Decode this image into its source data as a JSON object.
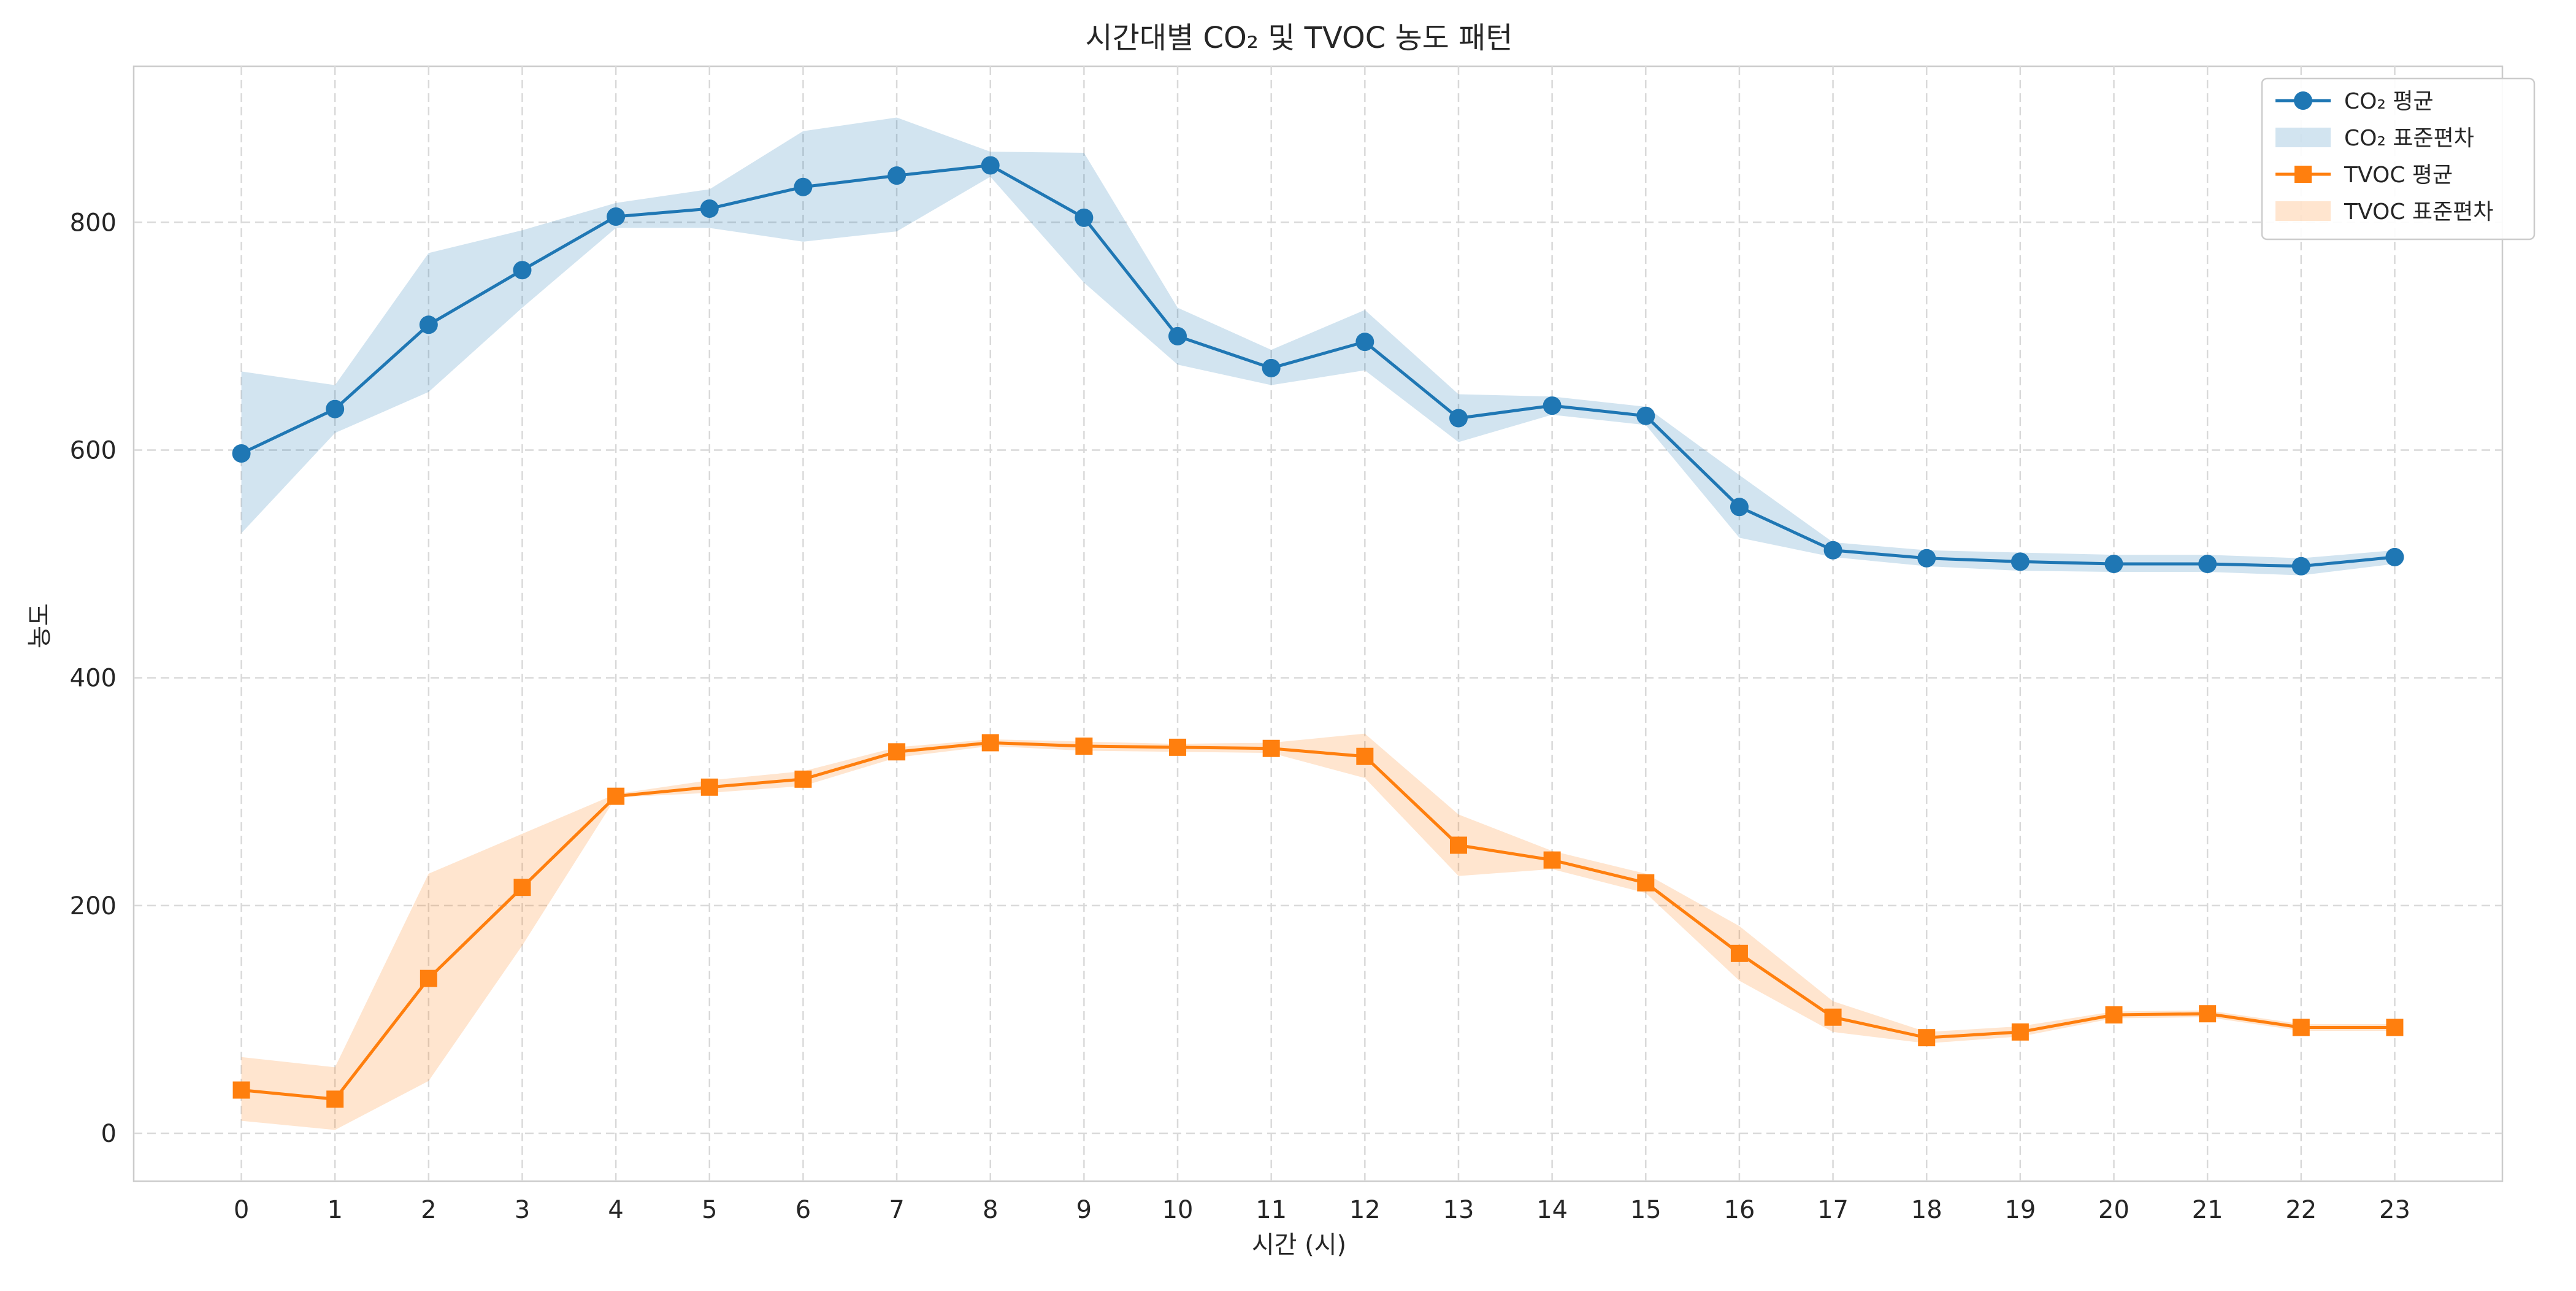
{
  "chart_data": {
    "type": "line",
    "title": "시간대별 CO₂ 및 TVOC 농도 패턴",
    "xlabel": "시간 (시)",
    "ylabel": "농도",
    "x": [
      0,
      1,
      2,
      3,
      4,
      5,
      6,
      7,
      8,
      9,
      10,
      11,
      12,
      13,
      14,
      15,
      16,
      17,
      18,
      19,
      20,
      21,
      22,
      23
    ],
    "xlim": [
      -1.15,
      24.15
    ],
    "ylim": [
      -42,
      937
    ],
    "yticks": [
      0,
      200,
      400,
      600,
      800
    ],
    "grid": true,
    "legend_position": "top-right",
    "series": [
      {
        "name": "CO₂ 평균",
        "band_name": "CO₂ 표준편차",
        "color": "#1f77b4",
        "marker": "circle",
        "values": [
          597,
          636,
          710,
          758,
          805,
          812,
          831,
          841,
          850,
          804,
          700,
          672,
          695,
          628,
          639,
          630,
          550,
          512,
          505,
          502,
          500,
          500,
          498,
          506
        ],
        "lower": [
          527,
          615,
          651,
          725,
          795,
          795,
          783,
          792,
          840,
          747,
          675,
          657,
          670,
          607,
          631,
          622,
          523,
          506,
          498,
          494,
          493,
          493,
          490,
          500
        ],
        "upper": [
          669,
          657,
          773,
          793,
          817,
          829,
          880,
          892,
          862,
          861,
          725,
          688,
          723,
          649,
          647,
          638,
          578,
          519,
          512,
          510,
          508,
          508,
          505,
          512
        ]
      },
      {
        "name": "TVOC 평균",
        "band_name": "TVOC 표준편차",
        "color": "#ff7f0e",
        "marker": "square",
        "values": [
          38,
          30,
          136,
          216,
          296,
          304,
          311,
          335,
          343,
          340,
          339,
          338,
          331,
          253,
          240,
          220,
          158,
          102,
          84,
          89,
          104,
          105,
          93,
          93
        ],
        "lower": [
          11,
          3,
          46,
          165,
          295,
          299,
          305,
          330,
          340,
          336,
          335,
          334,
          312,
          226,
          232,
          211,
          134,
          89,
          79,
          85,
          101,
          102,
          90,
          90
        ],
        "upper": [
          67,
          58,
          228,
          263,
          298,
          310,
          318,
          339,
          346,
          344,
          342,
          343,
          351,
          280,
          248,
          228,
          182,
          116,
          89,
          94,
          107,
          108,
          96,
          96
        ]
      }
    ]
  }
}
